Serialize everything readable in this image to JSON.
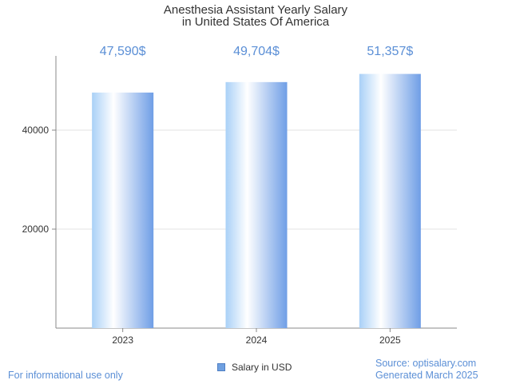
{
  "chart_data": {
    "type": "bar",
    "title_lines": [
      "Anesthesia Assistant Yearly Salary",
      "in United States Of America"
    ],
    "categories": [
      "2023",
      "2024",
      "2025"
    ],
    "series": [
      {
        "name": "Salary in USD",
        "values": [
          47590,
          49704,
          51357
        ]
      }
    ],
    "data_labels": [
      "47,590$",
      "49,704$",
      "51,357$"
    ],
    "y_ticks": [
      20000,
      40000
    ],
    "y_tick_labels": [
      "20000",
      "40000"
    ],
    "ylim": [
      0,
      55000
    ],
    "grid": true,
    "legend_position": "bottom-center",
    "colors": {
      "bar_edge": "#6f9ee6",
      "bar_center": "#ffffff",
      "label": "#5b8fd6"
    }
  },
  "legend": {
    "label": "Salary in USD"
  },
  "footer": {
    "left": "For informational use only",
    "source": "Source: optisalary.com",
    "generated": "Generated March 2025"
  }
}
